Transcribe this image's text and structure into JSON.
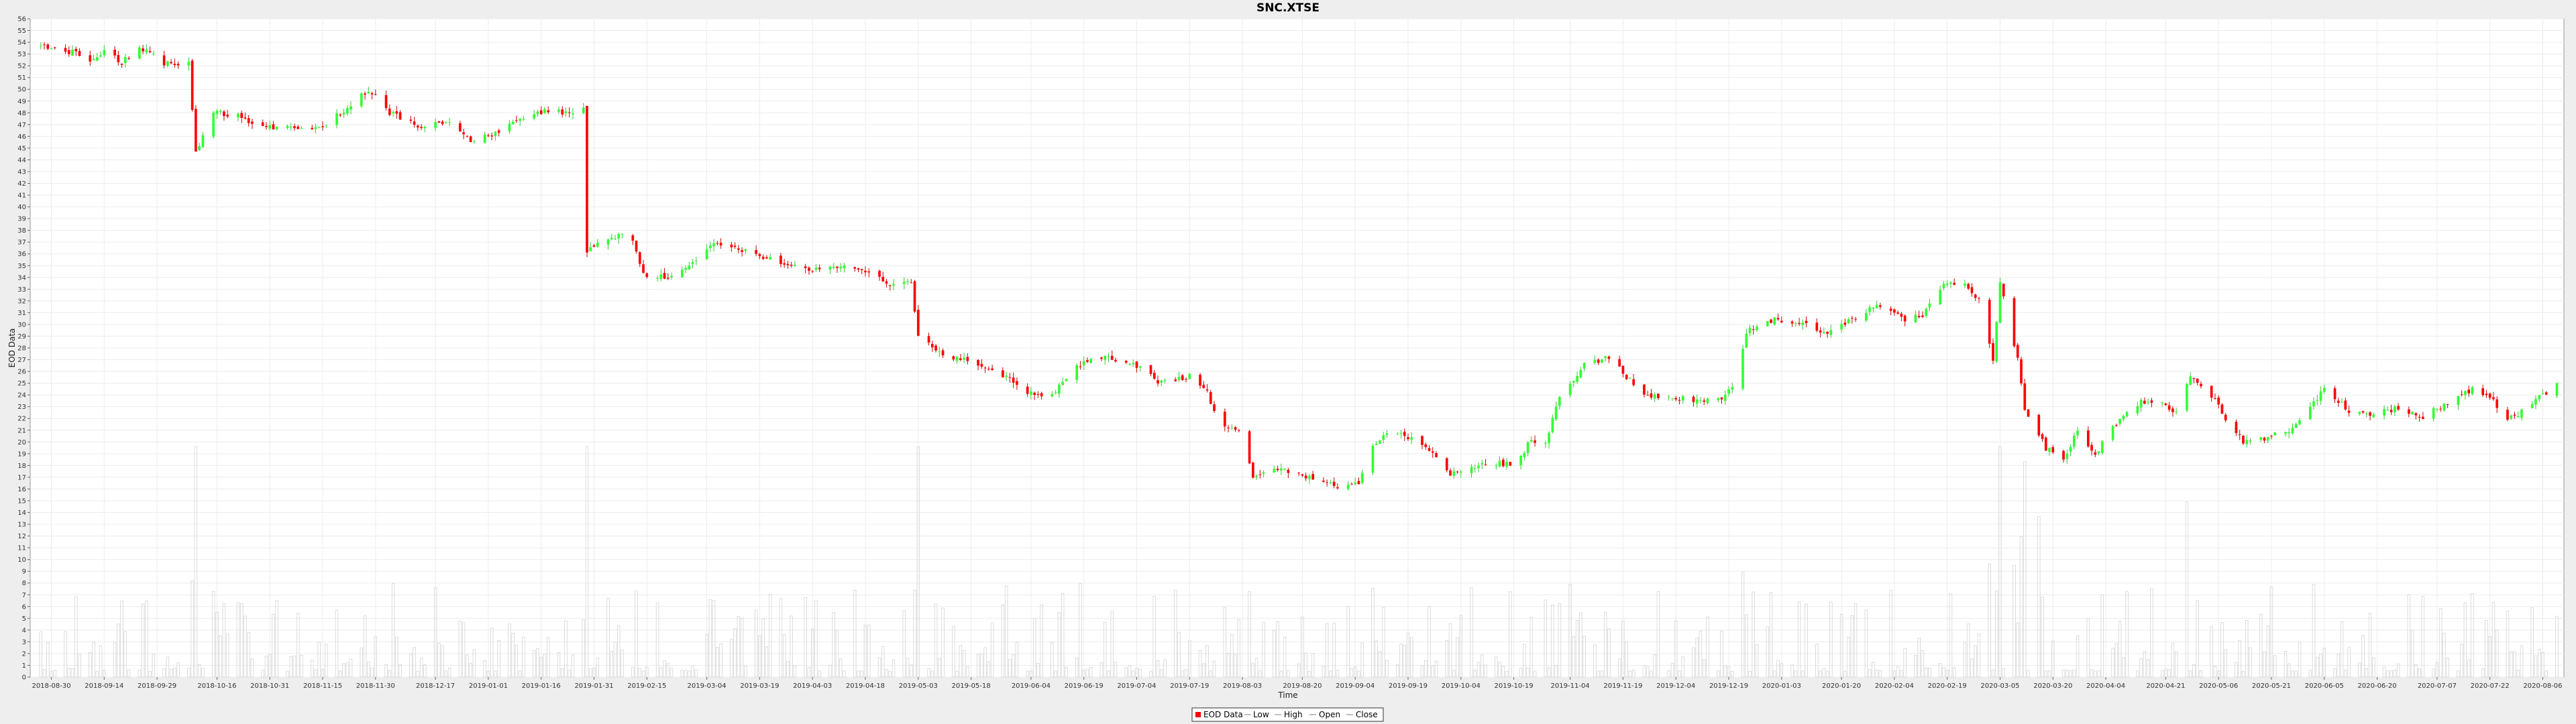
{
  "chart_data": {
    "type": "candlestick",
    "title": "SNC.XTSE",
    "xlabel": "Time",
    "ylabel": "EOD Data",
    "ylim": [
      0,
      56
    ],
    "volume_ylim": [
      0,
      56
    ],
    "grid": true,
    "legend_position": "bottom-center",
    "colors": {
      "up": "#33ff33",
      "down": "#ff0000",
      "wick_up": "#33cc33",
      "wick_down": "#cc0000",
      "volume": "#d4d4d4",
      "gridline": "#ececec",
      "plot_bg": "#ffffff",
      "page_bg": "#eeeeee"
    },
    "x_ticks": [
      "2018-08-30",
      "2018-09-14",
      "2018-09-29",
      "2018-10-16",
      "2018-10-31",
      "2018-11-15",
      "2018-11-30",
      "2018-12-17",
      "2019-01-01",
      "2019-01-16",
      "2019-01-31",
      "2019-02-15",
      "2019-03-04",
      "2019-03-19",
      "2019-04-03",
      "2019-04-18",
      "2019-05-03",
      "2019-05-18",
      "2019-06-04",
      "2019-06-19",
      "2019-07-04",
      "2019-07-19",
      "2019-08-03",
      "2019-08-20",
      "2019-09-04",
      "2019-09-19",
      "2019-10-04",
      "2019-10-19",
      "2019-11-04",
      "2019-11-19",
      "2019-12-04",
      "2019-12-19",
      "2020-01-03",
      "2020-01-20",
      "2020-02-04",
      "2020-02-19",
      "2020-03-05",
      "2020-03-20",
      "2020-04-04",
      "2020-04-21",
      "2020-05-06",
      "2020-05-21",
      "2020-06-05",
      "2020-06-20",
      "2020-07-07",
      "2020-07-22",
      "2020-08-06"
    ],
    "y_ticks": [
      0,
      1,
      2,
      3,
      4,
      5,
      6,
      7,
      8,
      9,
      10,
      11,
      12,
      13,
      14,
      15,
      16,
      17,
      18,
      19,
      20,
      21,
      22,
      23,
      24,
      25,
      26,
      27,
      28,
      29,
      30,
      31,
      32,
      33,
      34,
      35,
      36,
      37,
      38,
      39,
      40,
      41,
      42,
      43,
      44,
      45,
      46,
      47,
      48,
      49,
      50,
      51,
      52,
      53,
      54,
      55,
      56
    ],
    "close_anchors": [
      [
        "2018-08-27",
        53.6
      ],
      [
        "2018-09-05",
        53.2
      ],
      [
        "2018-09-10",
        52.3
      ],
      [
        "2018-09-14",
        53.4
      ],
      [
        "2018-09-19",
        52.3
      ],
      [
        "2018-09-24",
        53.6
      ],
      [
        "2018-10-01",
        52.2
      ],
      [
        "2018-10-08",
        52.3
      ],
      [
        "2018-10-10",
        44.5
      ],
      [
        "2018-10-15",
        48.0
      ],
      [
        "2018-10-22",
        47.8
      ],
      [
        "2018-10-29",
        46.8
      ],
      [
        "2018-11-08",
        46.8
      ],
      [
        "2018-11-15",
        46.6
      ],
      [
        "2018-11-20",
        48.0
      ],
      [
        "2018-11-28",
        50.0
      ],
      [
        "2018-12-04",
        48.0
      ],
      [
        "2018-12-12",
        46.8
      ],
      [
        "2018-12-20",
        47.3
      ],
      [
        "2018-12-27",
        45.5
      ],
      [
        "2019-01-03",
        46.3
      ],
      [
        "2019-01-10",
        47.3
      ],
      [
        "2019-01-18",
        48.2
      ],
      [
        "2019-01-25",
        47.9
      ],
      [
        "2019-01-28",
        48.6
      ],
      [
        "2019-01-29",
        36.2
      ],
      [
        "2019-02-04",
        37.2
      ],
      [
        "2019-02-10",
        37.8
      ],
      [
        "2019-02-14",
        34.2
      ],
      [
        "2019-02-22",
        34.0
      ],
      [
        "2019-03-01",
        35.5
      ],
      [
        "2019-03-06",
        37.0
      ],
      [
        "2019-03-15",
        36.2
      ],
      [
        "2019-03-25",
        35.3
      ],
      [
        "2019-04-03",
        34.6
      ],
      [
        "2019-04-12",
        35.0
      ],
      [
        "2019-04-20",
        34.2
      ],
      [
        "2019-04-26",
        33.2
      ],
      [
        "2019-05-01",
        33.6
      ],
      [
        "2019-05-03",
        29.0
      ],
      [
        "2019-05-10",
        27.5
      ],
      [
        "2019-05-20",
        26.6
      ],
      [
        "2019-05-28",
        25.5
      ],
      [
        "2019-06-04",
        24.1
      ],
      [
        "2019-06-10",
        24.1
      ],
      [
        "2019-06-17",
        26.5
      ],
      [
        "2019-06-24",
        27.2
      ],
      [
        "2019-07-01",
        26.6
      ],
      [
        "2019-07-06",
        26.5
      ],
      [
        "2019-07-10",
        25.2
      ],
      [
        "2019-07-20",
        25.6
      ],
      [
        "2019-07-24",
        24.2
      ],
      [
        "2019-07-27",
        21.5
      ],
      [
        "2019-08-02",
        21.0
      ],
      [
        "2019-08-06",
        17.2
      ],
      [
        "2019-08-12",
        17.8
      ],
      [
        "2019-08-22",
        17.0
      ],
      [
        "2019-08-30",
        16.1
      ],
      [
        "2019-09-05",
        16.5
      ],
      [
        "2019-09-09",
        19.5
      ],
      [
        "2019-09-13",
        20.8
      ],
      [
        "2019-09-20",
        20.3
      ],
      [
        "2019-09-25",
        19.4
      ],
      [
        "2019-10-01",
        17.3
      ],
      [
        "2019-10-06",
        17.6
      ],
      [
        "2019-10-12",
        18.3
      ],
      [
        "2019-10-19",
        18.0
      ],
      [
        "2019-10-24",
        20.2
      ],
      [
        "2019-10-28",
        20.0
      ],
      [
        "2019-11-01",
        24.0
      ],
      [
        "2019-11-08",
        26.5
      ],
      [
        "2019-11-15",
        27.2
      ],
      [
        "2019-11-20",
        25.5
      ],
      [
        "2019-11-26",
        24.0
      ],
      [
        "2019-12-02",
        23.8
      ],
      [
        "2019-12-10",
        23.5
      ],
      [
        "2019-12-17",
        23.6
      ],
      [
        "2019-12-20",
        24.8
      ],
      [
        "2019-12-24",
        29.3
      ],
      [
        "2019-12-30",
        30.4
      ],
      [
        "2020-01-08",
        30.2
      ],
      [
        "2020-01-15",
        29.3
      ],
      [
        "2020-01-22",
        30.2
      ],
      [
        "2020-01-30",
        31.8
      ],
      [
        "2020-02-07",
        30.5
      ],
      [
        "2020-02-12",
        30.8
      ],
      [
        "2020-02-18",
        33.5
      ],
      [
        "2020-02-24",
        33.3
      ],
      [
        "2020-02-28",
        32.2
      ],
      [
        "2020-03-03",
        27.0
      ],
      [
        "2020-03-05",
        33.8
      ],
      [
        "2020-03-10",
        27.0
      ],
      [
        "2020-03-12",
        22.5
      ],
      [
        "2020-03-18",
        19.5
      ],
      [
        "2020-03-23",
        18.5
      ],
      [
        "2020-03-27",
        21.0
      ],
      [
        "2020-04-01",
        19.0
      ],
      [
        "2020-04-08",
        22.0
      ],
      [
        "2020-04-14",
        23.5
      ],
      [
        "2020-04-20",
        23.2
      ],
      [
        "2020-04-24",
        22.4
      ],
      [
        "2020-04-28",
        25.7
      ],
      [
        "2020-05-04",
        24.0
      ],
      [
        "2020-05-08",
        22.0
      ],
      [
        "2020-05-13",
        20.0
      ],
      [
        "2020-05-20",
        20.4
      ],
      [
        "2020-05-28",
        21.3
      ],
      [
        "2020-06-05",
        24.6
      ],
      [
        "2020-06-12",
        22.6
      ],
      [
        "2020-06-19",
        22.4
      ],
      [
        "2020-06-26",
        22.9
      ],
      [
        "2020-07-03",
        22.2
      ],
      [
        "2020-07-10",
        23.3
      ],
      [
        "2020-07-17",
        24.4
      ],
      [
        "2020-07-22",
        24.0
      ],
      [
        "2020-07-27",
        21.8
      ],
      [
        "2020-08-04",
        23.5
      ],
      [
        "2020-08-10",
        25.0
      ]
    ],
    "gaps": [
      [
        "2019-01-25",
        "2019-01-29"
      ]
    ],
    "x_range": [
      "2018-08-24",
      "2020-08-12"
    ],
    "volume_range": [
      0.5,
      8.0
    ]
  },
  "legend": {
    "items": [
      {
        "label": "EOD Data",
        "key": "swatch"
      },
      {
        "label": "Low",
        "key": "line"
      },
      {
        "label": "High",
        "key": "line"
      },
      {
        "label": "Open",
        "key": "line"
      },
      {
        "label": "Close",
        "key": "line"
      }
    ]
  }
}
